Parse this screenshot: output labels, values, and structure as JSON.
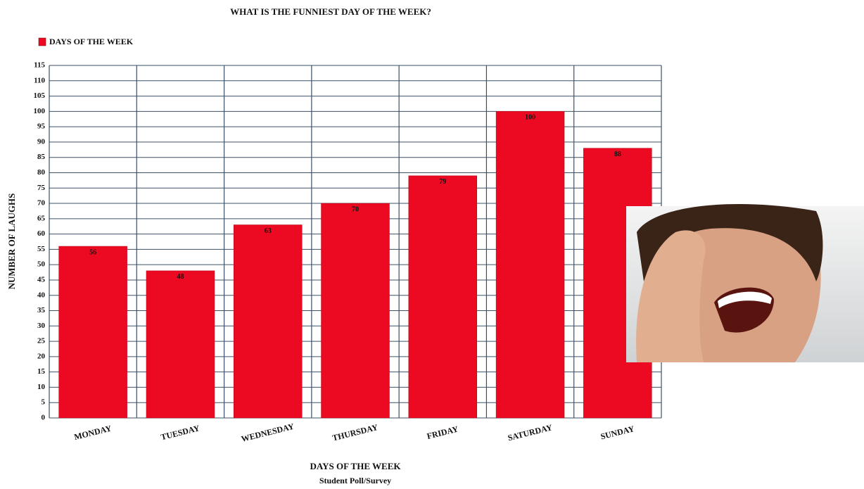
{
  "chart_data": {
    "type": "bar",
    "title": "WHAT IS THE FUNNIEST DAY OF THE WEEK?",
    "categories": [
      "MONDAY",
      "TUESDAY",
      "WEDNESDAY",
      "THURSDAY",
      "FRIDAY",
      "SATURDAY",
      "SUNDAY"
    ],
    "series": [
      {
        "name": "DAYS OF THE WEEK",
        "color": "#ec0a22",
        "values": [
          56,
          48,
          63,
          70,
          79,
          100,
          88
        ]
      }
    ],
    "xlabel": "DAYS OF THE WEEK",
    "subtitle": "Student Poll/Survey",
    "ylabel": "NUMBER OF LAUGHS",
    "ylim": [
      0,
      115
    ],
    "yticks": [
      0,
      5,
      10,
      15,
      20,
      25,
      30,
      35,
      40,
      45,
      50,
      55,
      60,
      65,
      70,
      75,
      80,
      85,
      90,
      95,
      100,
      105,
      110,
      115
    ],
    "grid": true,
    "legend_position": "top-left"
  }
}
